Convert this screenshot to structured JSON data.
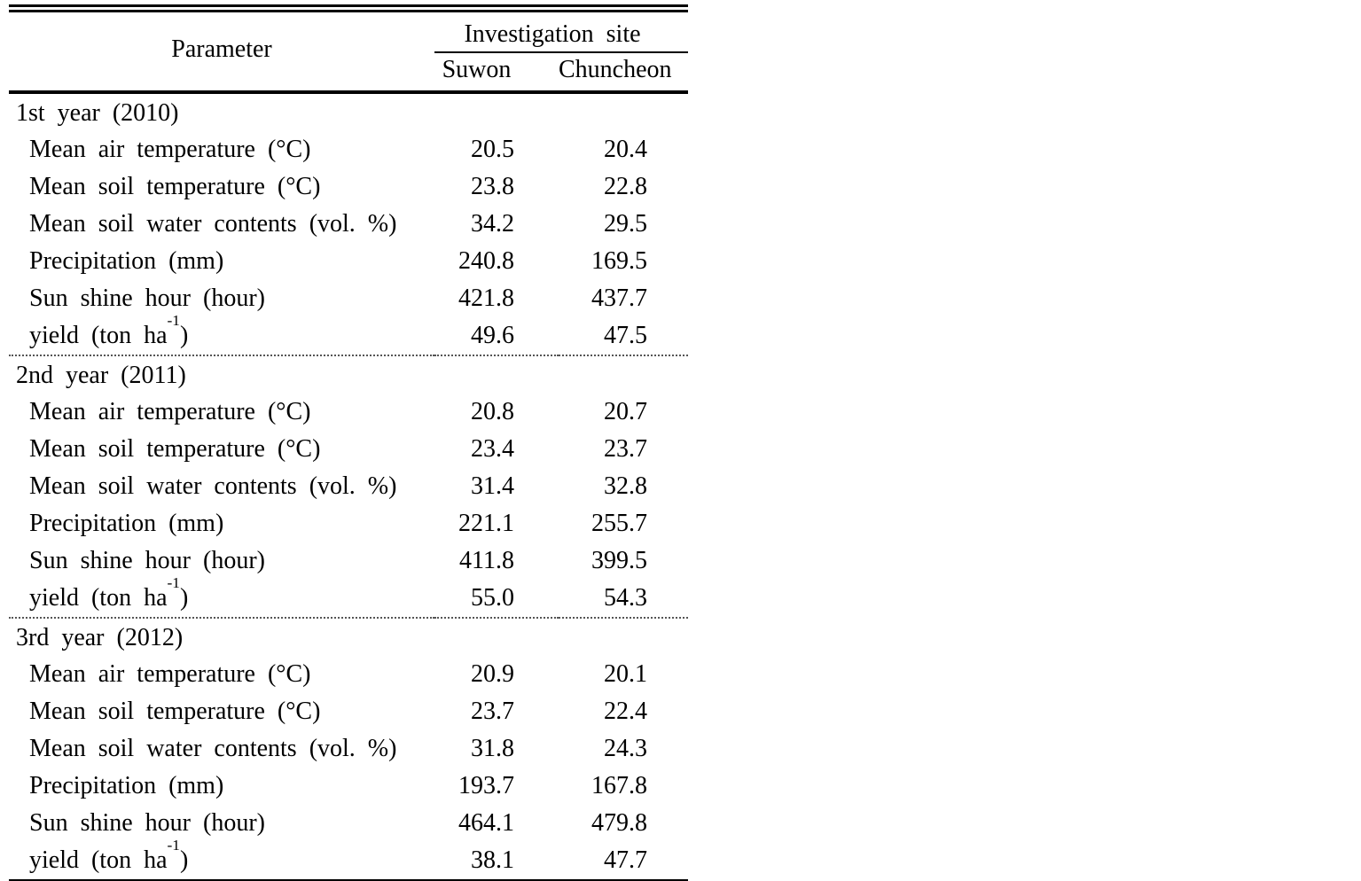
{
  "table": {
    "header": {
      "parameter_label": "Parameter",
      "site_group_label": "Investigation site",
      "site_columns": [
        "Suwon",
        "Chuncheon"
      ]
    },
    "sections": [
      {
        "title": "1st year (2010)",
        "rows": [
          {
            "label": "Mean air temperature (°C)",
            "values": [
              "20.5",
              "20.4"
            ]
          },
          {
            "label": "Mean soil temperature (°C)",
            "values": [
              "23.8",
              "22.8"
            ]
          },
          {
            "label": "Mean soil water contents (vol. %)",
            "values": [
              "34.2",
              "29.5"
            ]
          },
          {
            "label": "Precipitation (mm)",
            "values": [
              "240.8",
              "169.5"
            ]
          },
          {
            "label": "Sun shine hour (hour)",
            "values": [
              "421.8",
              "437.7"
            ]
          },
          {
            "label": "yield (ton ha",
            "label_sup": "-1",
            "label_suffix": ")",
            "values": [
              "49.6",
              "47.5"
            ]
          }
        ]
      },
      {
        "title": "2nd year (2011)",
        "rows": [
          {
            "label": "Mean air temperature (°C)",
            "values": [
              "20.8",
              "20.7"
            ]
          },
          {
            "label": "Mean soil temperature (°C)",
            "values": [
              "23.4",
              "23.7"
            ]
          },
          {
            "label": "Mean soil water contents (vol. %)",
            "values": [
              "31.4",
              "32.8"
            ]
          },
          {
            "label": "Precipitation (mm)",
            "values": [
              "221.1",
              "255.7"
            ]
          },
          {
            "label": "Sun shine hour (hour)",
            "values": [
              "411.8",
              "399.5"
            ]
          },
          {
            "label": "yield (ton ha",
            "label_sup": "-1",
            "label_suffix": ")",
            "values": [
              "55.0",
              "54.3"
            ]
          }
        ]
      },
      {
        "title": "3rd year (2012)",
        "rows": [
          {
            "label": "Mean air temperature (°C)",
            "values": [
              "20.9",
              "20.1"
            ]
          },
          {
            "label": "Mean soil temperature (°C)",
            "values": [
              "23.7",
              "22.4"
            ]
          },
          {
            "label": "Mean soil water contents (vol. %)",
            "values": [
              "31.8",
              "24.3"
            ]
          },
          {
            "label": "Precipitation (mm)",
            "values": [
              "193.7",
              "167.8"
            ]
          },
          {
            "label": "Sun shine hour (hour)",
            "values": [
              "464.1",
              "479.8"
            ]
          },
          {
            "label": "yield (ton ha",
            "label_sup": "-1",
            "label_suffix": ")",
            "values": [
              "38.1",
              "47.7"
            ]
          }
        ]
      }
    ]
  }
}
